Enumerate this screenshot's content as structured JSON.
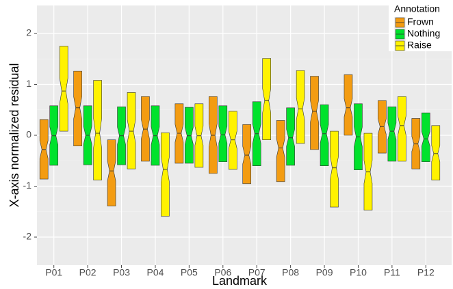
{
  "chart_data": {
    "type": "boxplot",
    "x_label": "Landmark",
    "y_label": "X-axis normalized residual",
    "legend_title": "Annotation",
    "legend": "top-right",
    "categories": [
      "P01",
      "P02",
      "P03",
      "P04",
      "P05",
      "P06",
      "P07",
      "P08",
      "P09",
      "P10",
      "P11",
      "P12"
    ],
    "ylim": [
      -2.55,
      2.55
    ],
    "yticks": [
      -2,
      -1,
      0,
      1,
      2
    ],
    "grid": true,
    "series": [
      {
        "name": "Frown",
        "color": "#f39c12",
        "upper": [
          0.31,
          1.26,
          -0.09,
          0.76,
          0.62,
          0.76,
          0.21,
          0.29,
          1.16,
          1.19,
          0.68,
          0.33
        ],
        "median": [
          -0.28,
          0.54,
          -0.7,
          0.12,
          0.04,
          0,
          -0.39,
          -0.25,
          0.47,
          0.54,
          0.17,
          -0.17
        ],
        "lower": [
          -0.86,
          -0.21,
          -1.39,
          -0.51,
          -0.55,
          -0.75,
          -0.95,
          -0.91,
          -0.28,
          0,
          -0.35,
          -0.66
        ]
      },
      {
        "name": "Nothing",
        "color": "#00e22c",
        "upper": [
          0.58,
          0.58,
          0.56,
          0.58,
          0.55,
          0.58,
          0.66,
          0.54,
          0.6,
          0.62,
          0.56,
          0.44
        ],
        "median": [
          -0.01,
          0,
          -0.01,
          -0.01,
          -0.01,
          0.01,
          0.03,
          -0.05,
          0.03,
          -0.03,
          0.08,
          -0.07
        ],
        "lower": [
          -0.59,
          -0.58,
          -0.58,
          -0.59,
          -0.55,
          -0.52,
          -0.6,
          -0.59,
          -0.6,
          -0.68,
          -0.51,
          -0.52
        ]
      },
      {
        "name": "Raise",
        "color": "#fff200",
        "upper": [
          1.75,
          1.08,
          0.84,
          0.05,
          0.62,
          0.47,
          1.51,
          1.27,
          0.08,
          0.04,
          0.76,
          0.19
        ],
        "median": [
          0.87,
          0.04,
          0.08,
          -0.67,
          -0.01,
          -0.09,
          0.68,
          0.52,
          -0.64,
          -0.72,
          0.19,
          -0.36
        ],
        "lower": [
          0.08,
          -0.88,
          -0.66,
          -1.59,
          -0.63,
          -0.67,
          -0.09,
          -0.16,
          -1.41,
          -1.47,
          -0.51,
          -0.88
        ]
      }
    ]
  }
}
